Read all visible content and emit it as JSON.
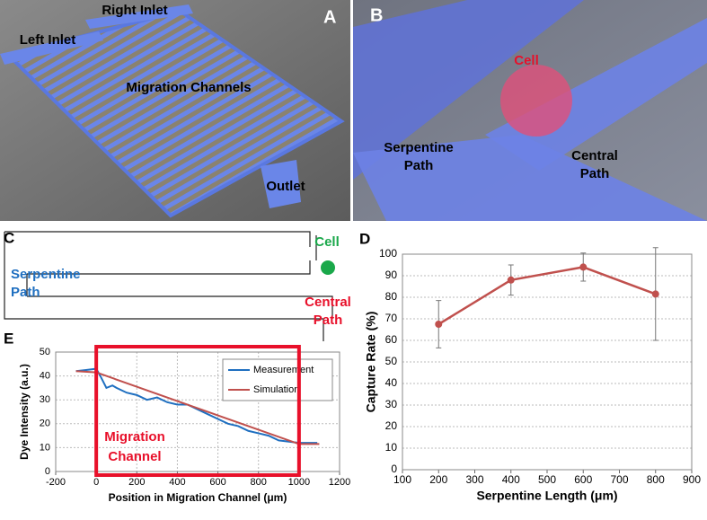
{
  "panels": {
    "a": {
      "letter": "A",
      "right_inlet": "Right Inlet",
      "left_inlet": "Left Inlet",
      "migration_channels": "Migration Channels",
      "outlet": "Outlet"
    },
    "b": {
      "letter": "B",
      "cell": "Cell",
      "serpentine": "Serpentine Path",
      "central": "Central Path"
    },
    "c": {
      "letter": "C",
      "cell": "Cell",
      "serpentine": "Serpentine Path",
      "central": "Central Path"
    },
    "d": {
      "letter": "D"
    },
    "e": {
      "letter": "E"
    }
  },
  "chart_data": [
    {
      "type": "line",
      "xlabel": "Serpentine Length (μm)",
      "ylabel": "Capture Rate (%)",
      "color": "#c0504d",
      "x": [
        200,
        400,
        600,
        800
      ],
      "values": [
        67.5,
        88,
        94,
        81.5
      ],
      "errors": [
        11,
        7,
        6.5,
        21.5
      ],
      "xlim": [
        100,
        900
      ],
      "xticks": [
        100,
        200,
        300,
        400,
        500,
        600,
        700,
        800,
        900
      ],
      "ylim": [
        0,
        100
      ],
      "yticks": [
        0,
        10,
        20,
        30,
        40,
        50,
        60,
        70,
        80,
        90,
        100
      ],
      "grid": true
    },
    {
      "type": "line",
      "xlabel": "Position in Migration Channel (μm)",
      "ylabel": "Dye Intensity (a.u.)",
      "series": [
        {
          "name": "Measurement",
          "color": "#1f6fc0",
          "x": [
            -100,
            -50,
            0,
            20,
            50,
            80,
            100,
            150,
            200,
            250,
            300,
            350,
            400,
            450,
            500,
            550,
            600,
            650,
            700,
            750,
            800,
            850,
            900,
            950,
            1000,
            1050,
            1090
          ],
          "values": [
            42,
            42.5,
            43,
            40,
            35,
            36,
            35,
            33,
            32,
            30,
            31,
            29,
            28,
            28,
            26,
            24,
            22,
            20,
            19,
            17,
            16,
            15,
            13,
            12.5,
            12,
            12,
            12
          ]
        },
        {
          "name": "Simulation",
          "color": "#c0504d",
          "x": [
            -100,
            0,
            1000,
            1100
          ],
          "values": [
            42,
            41.5,
            11.5,
            11.5
          ]
        }
      ],
      "xlim": [
        -200,
        1200
      ],
      "xticks": [
        -200,
        0,
        200,
        400,
        600,
        800,
        1000,
        1200
      ],
      "ylim": [
        0,
        50
      ],
      "yticks": [
        0,
        10,
        20,
        30,
        40,
        50
      ],
      "grid": true,
      "highlight_range": [
        0,
        1000
      ],
      "highlight_label": "Migration Channel"
    }
  ]
}
